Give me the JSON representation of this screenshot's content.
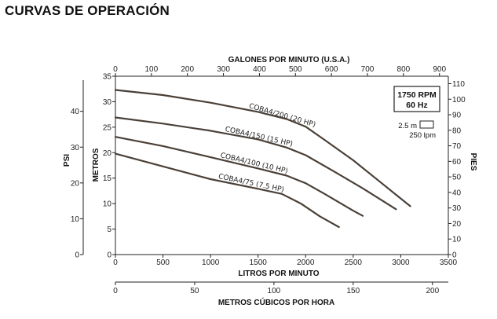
{
  "page": {
    "title": "CURVAS DE OPERACIÓN"
  },
  "chart_data": {
    "type": "line",
    "title": "CURVAS DE OPERACIÓN",
    "speed_label": "1750 RPM",
    "freq_label": "60 Hz",
    "grid": false,
    "legend": "",
    "key": {
      "head_label": "2.5 m",
      "flow_label": "250 lpm"
    },
    "axes": {
      "bottom": {
        "label": "LITROS POR MINUTO",
        "unit": "lpm",
        "range": [
          0,
          3500
        ],
        "ticks": [
          0,
          500,
          1000,
          1500,
          2000,
          2500,
          3000,
          3500
        ]
      },
      "top": {
        "label": "GALONES POR MINUTO (U.S.A.)",
        "unit": "gpm",
        "range": [
          0,
          924.6
        ],
        "ticks": [
          0,
          100,
          200,
          300,
          400,
          500,
          600,
          700,
          800,
          900
        ]
      },
      "m3h": {
        "label": "METROS CÚBICOS POR HORA",
        "unit": "m3/h",
        "range": [
          0,
          210
        ],
        "ticks": [
          0,
          50,
          100,
          150,
          200
        ]
      },
      "left_m": {
        "label": "METROS",
        "unit": "m",
        "range": [
          0,
          35
        ],
        "ticks": [
          0,
          5,
          10,
          15,
          20,
          25,
          30,
          35
        ]
      },
      "psi": {
        "label": "PSI",
        "unit": "psi",
        "range": [
          0,
          49.8
        ],
        "ticks": [
          0,
          10,
          20,
          30,
          40
        ]
      },
      "right_ft": {
        "label": "PIES",
        "unit": "ft",
        "range": [
          0,
          114.8
        ],
        "ticks": [
          0,
          10,
          20,
          30,
          40,
          50,
          60,
          70,
          80,
          90,
          100,
          110
        ]
      }
    },
    "series": [
      {
        "name": "COBA4/200 (20 HP)",
        "x": [
          0,
          500,
          1000,
          1500,
          1800,
          2000,
          2200,
          2500,
          2800,
          3100
        ],
        "y": [
          32.3,
          31.3,
          29.8,
          28.0,
          26.6,
          25.1,
          22.5,
          18.5,
          14.0,
          9.5
        ]
      },
      {
        "name": "COBA4/150 (15 HP)",
        "x": [
          0,
          500,
          1000,
          1500,
          1800,
          2000,
          2300,
          2600,
          2950
        ],
        "y": [
          26.9,
          25.7,
          24.3,
          22.6,
          21.0,
          19.5,
          16.3,
          13.0,
          8.9
        ]
      },
      {
        "name": "COBA4/100 (10 HP)",
        "x": [
          0,
          500,
          1000,
          1500,
          1800,
          2000,
          2200,
          2500,
          2600
        ],
        "y": [
          23.1,
          21.3,
          19.1,
          16.9,
          15.5,
          14.0,
          11.9,
          8.6,
          7.6
        ]
      },
      {
        "name": "COBA4/75 (7.5 HP)",
        "x": [
          0,
          500,
          1000,
          1500,
          1750,
          1950,
          2150,
          2350
        ],
        "y": [
          19.8,
          17.3,
          14.8,
          12.9,
          11.9,
          10.0,
          7.5,
          5.4
        ]
      }
    ]
  }
}
